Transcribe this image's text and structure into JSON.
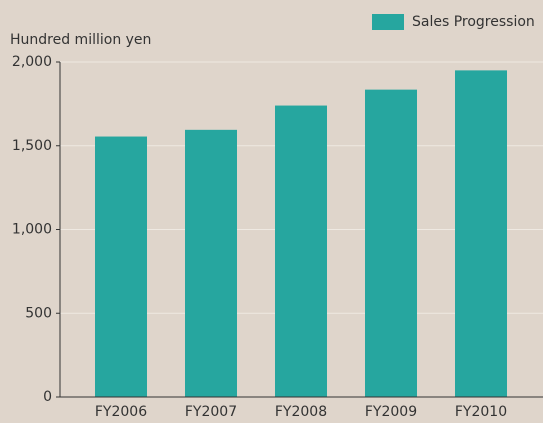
{
  "chart_data": {
    "type": "bar",
    "y_axis_label": "Hundred million yen",
    "categories": [
      "FY2006",
      "FY2007",
      "FY2008",
      "FY2009",
      "FY2010"
    ],
    "series": [
      {
        "name": "Sales Progression",
        "color": "#26a69f",
        "values": [
          1555,
          1595,
          1740,
          1835,
          1950
        ]
      }
    ],
    "ylim": [
      0,
      2000
    ],
    "yticks": [
      0,
      500,
      {
        "value": 1000,
        "label": "1,000"
      },
      {
        "value": 1500,
        "label": "1,500"
      },
      {
        "value": 2000,
        "label": "2,000"
      }
    ],
    "grid": true,
    "legend": "top-right"
  }
}
